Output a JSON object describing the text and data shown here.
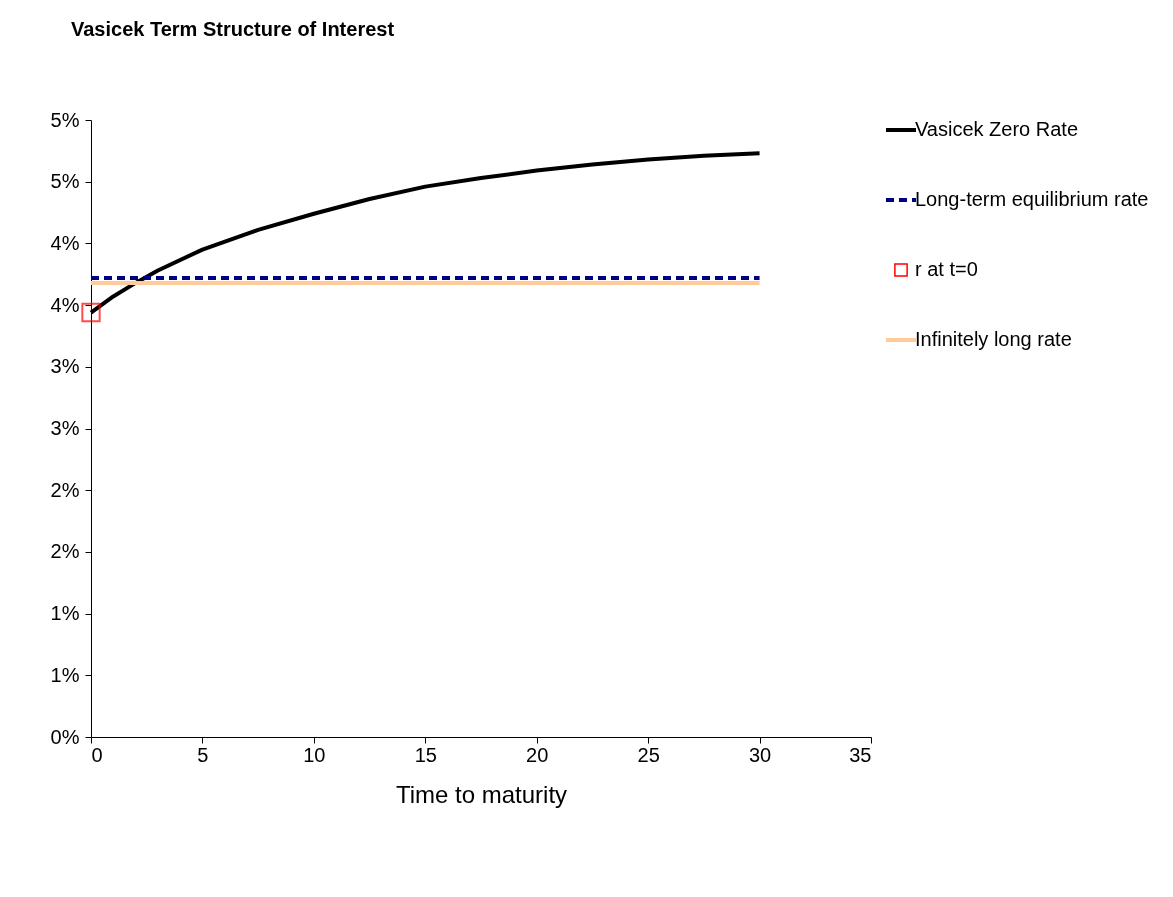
{
  "chart_data": {
    "type": "line",
    "title": "Vasicek Term Structure of Interest",
    "xlabel": "Time to maturity",
    "xlim": [
      0,
      35
    ],
    "xticks": [
      0,
      5,
      10,
      15,
      20,
      25,
      30,
      35
    ],
    "ylim": [
      0,
      5
    ],
    "yticks": [
      {
        "value": 0,
        "label": "0%"
      },
      {
        "value": 0.5,
        "label": "1%"
      },
      {
        "value": 1,
        "label": "1%"
      },
      {
        "value": 1.5,
        "label": "2%"
      },
      {
        "value": 2,
        "label": "2%"
      },
      {
        "value": 2.5,
        "label": "3%"
      },
      {
        "value": 3,
        "label": "3%"
      },
      {
        "value": 3.5,
        "label": "4%"
      },
      {
        "value": 4,
        "label": "4%"
      },
      {
        "value": 4.5,
        "label": "5%"
      },
      {
        "value": 5,
        "label": "5%"
      }
    ],
    "grid": false,
    "legend": "right",
    "series": [
      {
        "name": "Vasicek Zero Rate",
        "color": "#000000",
        "line_style": "solid",
        "marker": "none",
        "x": [
          0,
          1,
          2,
          3,
          5,
          7.5,
          10,
          12.5,
          15,
          17.5,
          20,
          22.5,
          25,
          27.5,
          30
        ],
        "values": [
          3.44,
          3.57,
          3.68,
          3.78,
          3.95,
          4.11,
          4.24,
          4.36,
          4.46,
          4.53,
          4.59,
          4.64,
          4.68,
          4.71,
          4.73
        ]
      },
      {
        "name": "Long-term equilibrium rate",
        "color": "#000080",
        "line_style": "dashed",
        "marker": "none",
        "x": [
          0,
          30
        ],
        "values": [
          3.72,
          3.72
        ]
      },
      {
        "name": "r at t=0",
        "type": "scatter",
        "color": "#ff0000",
        "marker": "square",
        "x": [
          0
        ],
        "values": [
          3.44
        ]
      },
      {
        "name": "Infinitely long rate",
        "color": "#ffcc99",
        "line_style": "solid",
        "marker": "none",
        "x": [
          0,
          30
        ],
        "values": [
          3.68,
          3.68
        ]
      }
    ]
  }
}
